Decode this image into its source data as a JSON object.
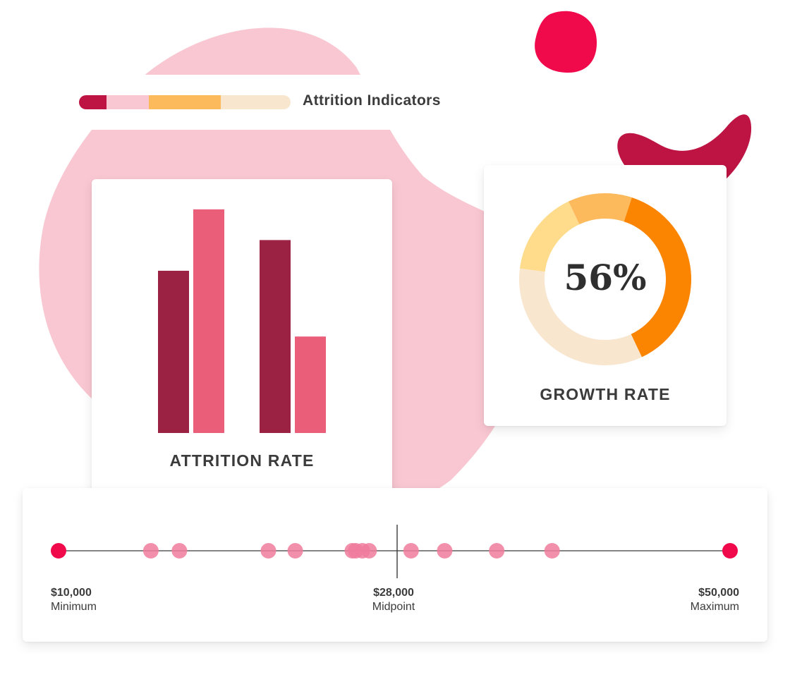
{
  "colors": {
    "blob_pink": "#f9c7d1",
    "accent_red": "#f00a4b",
    "dark_crimson": "#bd1443",
    "bar_dark": "#9b2242",
    "bar_light": "#eb5e7a",
    "orange": "#fb8500",
    "orange_light": "#fdba5c",
    "yellow_light": "#fedc8c",
    "peach": "#f8e6cf",
    "dot_pink": "#f07c9c",
    "text_dark": "#3b3b3b"
  },
  "legend": {
    "title": "Attrition Indicators",
    "segments": [
      {
        "color": "#bd1443",
        "fraction": 0.13
      },
      {
        "color": "#f9c7d1",
        "fraction": 0.2
      },
      {
        "color": "#fdba5c",
        "fraction": 0.34
      },
      {
        "color": "#f8e6cf",
        "fraction": 0.33
      }
    ]
  },
  "attrition": {
    "label": "ATTRITION RATE",
    "chart_data": {
      "type": "bar",
      "groups": 2,
      "series": [
        {
          "values": [
            74,
            88
          ]
        },
        {
          "values": [
            102,
            44
          ]
        }
      ],
      "ylim": [
        0,
        110
      ]
    }
  },
  "growth": {
    "value_text": "56%",
    "label": "GROWTH RATE",
    "chart_data": {
      "type": "pie",
      "segments": [
        {
          "value": 38,
          "color": "#fb8500"
        },
        {
          "value": 34,
          "color": "#f8e6cf"
        },
        {
          "value": 16,
          "color": "#fedc8c"
        },
        {
          "value": 12,
          "color": "#fdba5c"
        }
      ]
    }
  },
  "range": {
    "min_value": "$10,000",
    "min_label": "Minimum",
    "mid_value": "$28,000",
    "mid_label": "Midpoint",
    "max_value": "$50,000",
    "max_label": "Maximum",
    "chart_data": {
      "type": "scatter",
      "xlim": [
        10000,
        50000
      ],
      "midpoint": 28000,
      "points": [
        10000,
        15500,
        17200,
        22500,
        24100,
        27500,
        27700,
        28100,
        28500,
        31000,
        33000,
        36100,
        39400,
        50000
      ]
    }
  }
}
